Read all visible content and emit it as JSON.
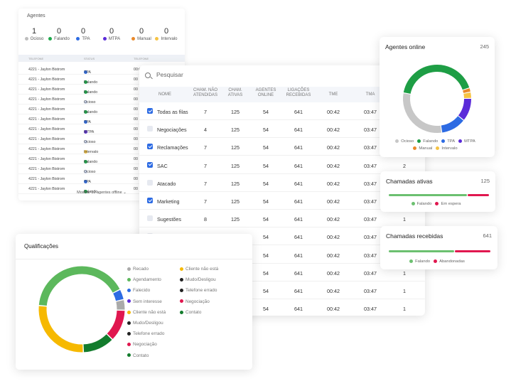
{
  "agentes": {
    "title": "Agentes",
    "stats": [
      {
        "value": "1",
        "label": "Ocioso",
        "color": "#bdbdbd"
      },
      {
        "value": "0",
        "label": "Falando",
        "color": "#1ea84b"
      },
      {
        "value": "0",
        "label": "TPA",
        "color": "#2d6be3"
      },
      {
        "value": "0",
        "label": "MTPA",
        "color": "#5b2bd9"
      },
      {
        "value": "0",
        "label": "Manual",
        "color": "#e9892a"
      },
      {
        "value": "0",
        "label": "Intervalo",
        "color": "#f6c343"
      }
    ],
    "columns": [
      "TELEFONE",
      "STATUS",
      "TELEFONE"
    ],
    "rows": [
      {
        "agent": "4221 - Jaylon Bistrom",
        "status": "TPA",
        "color": "#2d6be3",
        "time": "00:00:18"
      },
      {
        "agent": "4221 - Jaylon Bistrom",
        "status": "Falando",
        "color": "#1ea84b",
        "time": "00"
      },
      {
        "agent": "4221 - Jaylon Bistrom",
        "status": "Falando",
        "color": "#1ea84b",
        "time": "00"
      },
      {
        "agent": "4221 - Jaylon Bistrom",
        "status": "Ocioso",
        "color": "#c9d3ea",
        "time": "00"
      },
      {
        "agent": "4221 - Jaylon Bistrom",
        "status": "Falando",
        "color": "#1ea84b",
        "time": "00"
      },
      {
        "agent": "4221 - Jaylon Bistrom",
        "status": "TPA",
        "color": "#2d6be3",
        "time": "00"
      },
      {
        "agent": "4221 - Jaylon Bistrom",
        "status": "MTPA",
        "color": "#5b2bd9",
        "time": "00"
      },
      {
        "agent": "4221 - Jaylon Bistrom",
        "status": "Ocioso",
        "color": "#c9d3ea",
        "time": "00"
      },
      {
        "agent": "4221 - Jaylon Bistrom",
        "status": "Intervalo",
        "color": "#f6c343",
        "time": "00"
      },
      {
        "agent": "4221 - Jaylon Bistrom",
        "status": "Falando",
        "color": "#1ea84b",
        "time": "00"
      },
      {
        "agent": "4221 - Jaylon Bistrom",
        "status": "Ocioso",
        "color": "#c9d3ea",
        "time": "00"
      },
      {
        "agent": "4221 - Jaylon Bistrom",
        "status": "TPA",
        "color": "#2d6be3",
        "time": "00"
      },
      {
        "agent": "4221 - Jaylon Bistrom",
        "status": "Falando",
        "color": "#1ea84b",
        "time": "00"
      }
    ],
    "more": "Mostrar 10 agentes offline"
  },
  "tabela": {
    "search_placeholder": "Pesquisar",
    "headers": [
      "NOME",
      "CHAM. NÃO ATENDIDAS",
      "CHAM. ATIVAS",
      "AGENTES ONLINE",
      "LIGAÇÕES RECEBIDAS",
      "TME",
      "TMA"
    ],
    "rows": [
      {
        "checked": true,
        "name": "Todas as filas",
        "nao_atendidas": "7",
        "ativas": "125",
        "online": "54",
        "recebidas": "641",
        "tme": "00:42",
        "tma": "03:47",
        "extra": ""
      },
      {
        "checked": false,
        "name": "Negociações",
        "nao_atendidas": "4",
        "ativas": "125",
        "online": "54",
        "recebidas": "641",
        "tme": "00:42",
        "tma": "03:47",
        "extra": ""
      },
      {
        "checked": true,
        "name": "Reclamações",
        "nao_atendidas": "7",
        "ativas": "125",
        "online": "54",
        "recebidas": "641",
        "tme": "00:42",
        "tma": "03:47",
        "extra": ""
      },
      {
        "checked": true,
        "name": "SAC",
        "nao_atendidas": "7",
        "ativas": "125",
        "online": "54",
        "recebidas": "641",
        "tme": "00:42",
        "tma": "03:47",
        "extra": "2"
      },
      {
        "checked": false,
        "name": "Atacado",
        "nao_atendidas": "7",
        "ativas": "125",
        "online": "54",
        "recebidas": "641",
        "tme": "00:42",
        "tma": "03:47",
        "extra": ""
      },
      {
        "checked": true,
        "name": "Marketing",
        "nao_atendidas": "7",
        "ativas": "125",
        "online": "54",
        "recebidas": "641",
        "tme": "00:42",
        "tma": "03:47",
        "extra": ""
      },
      {
        "checked": false,
        "name": "Sugestões",
        "nao_atendidas": "8",
        "ativas": "125",
        "online": "54",
        "recebidas": "641",
        "tme": "00:42",
        "tma": "03:47",
        "extra": "1"
      },
      {
        "checked": false,
        "name": "FAQ",
        "nao_atendidas": "7",
        "ativas": "125",
        "online": "54",
        "recebidas": "641",
        "tme": "00:42",
        "tma": "03:47",
        "extra": ""
      },
      {
        "checked": false,
        "name": "",
        "nao_atendidas": "",
        "ativas": "",
        "online": "54",
        "recebidas": "641",
        "tme": "00:42",
        "tma": "03:47",
        "extra": ""
      },
      {
        "checked": false,
        "name": "",
        "nao_atendidas": "",
        "ativas": "",
        "online": "54",
        "recebidas": "641",
        "tme": "00:42",
        "tma": "03:47",
        "extra": "1"
      },
      {
        "checked": false,
        "name": "",
        "nao_atendidas": "",
        "ativas": "",
        "online": "54",
        "recebidas": "641",
        "tme": "00:42",
        "tma": "03:47",
        "extra": "1"
      },
      {
        "checked": false,
        "name": "",
        "nao_atendidas": "",
        "ativas": "",
        "online": "54",
        "recebidas": "641",
        "tme": "00:42",
        "tma": "03:47",
        "extra": "1"
      }
    ]
  },
  "online": {
    "title": "Agentes online",
    "count": "245",
    "segments": [
      {
        "label": "Falando",
        "value": 42,
        "color": "#1e9e45"
      },
      {
        "label": "Manual",
        "value": 2,
        "color": "#e9892a"
      },
      {
        "label": "Intervalo",
        "value": 3,
        "color": "#f6c343"
      },
      {
        "label": "MTPA",
        "value": 11,
        "color": "#5b2bd9"
      },
      {
        "label": "TPA",
        "value": 12,
        "color": "#2d6be3"
      },
      {
        "label": "Ocioso",
        "value": 30,
        "color": "#c7c7c7"
      }
    ],
    "legend_row1": [
      {
        "label": "Ocioso",
        "color": "#c7c7c7"
      },
      {
        "label": "Falando",
        "color": "#1e9e45"
      },
      {
        "label": "TPA",
        "color": "#2d6be3"
      },
      {
        "label": "MTPA",
        "color": "#5b2bd9"
      }
    ],
    "legend_row2": [
      {
        "label": "Manual",
        "color": "#e9892a"
      },
      {
        "label": "Intervalo",
        "color": "#f6c343"
      }
    ]
  },
  "ativas": {
    "title": "Chamadas ativas",
    "count": "125",
    "falando_fraction": 0.78,
    "legend": [
      {
        "label": "Falando",
        "color": "#6cc070"
      },
      {
        "label": "Em espera",
        "color": "#e0174f"
      }
    ]
  },
  "recebidas": {
    "title": "Chamadas recebidas",
    "count": "641",
    "falando_fraction": 0.64,
    "legend": [
      {
        "label": "Falando",
        "color": "#6cc070"
      },
      {
        "label": "Abandonadas",
        "color": "#e0174f"
      }
    ]
  },
  "qual": {
    "title": "Qualificações",
    "segments": [
      {
        "label": "Agendamento",
        "value": 41,
        "color": "#5cb85c"
      },
      {
        "label": "Falecido",
        "value": 4,
        "color": "#2d6be3"
      },
      {
        "label": "Recado",
        "value": 4,
        "color": "#aaaaaa"
      },
      {
        "label": "Negociação",
        "value": 12,
        "color": "#e0174f"
      },
      {
        "label": "Contato",
        "value": 12,
        "color": "#137c2d"
      },
      {
        "label": "Cliente não está",
        "value": 27,
        "color": "#f6b900"
      }
    ],
    "legend_col1": [
      {
        "label": "Recado",
        "color": "#aaaaaa"
      },
      {
        "label": "Agendamento",
        "color": "#5cb85c"
      },
      {
        "label": "Falecido",
        "color": "#2d6be3"
      },
      {
        "label": "Sem interesse",
        "color": "#5b2bd9"
      },
      {
        "label": "Cliente não está",
        "color": "#f6b900"
      },
      {
        "label": "Mudo/Desligou",
        "color": "#222222"
      },
      {
        "label": "Telefone errado",
        "color": "#222222"
      },
      {
        "label": "Negociação",
        "color": "#e0174f"
      },
      {
        "label": "Contato",
        "color": "#137c2d"
      }
    ],
    "legend_col2": [
      {
        "label": "Cliente não está",
        "color": "#f6b900"
      },
      {
        "label": "Mudo/Desligou",
        "color": "#222222"
      },
      {
        "label": "Telefone errado",
        "color": "#222222"
      },
      {
        "label": "Negociação",
        "color": "#e0174f"
      },
      {
        "label": "Contato",
        "color": "#137c2d"
      }
    ]
  }
}
